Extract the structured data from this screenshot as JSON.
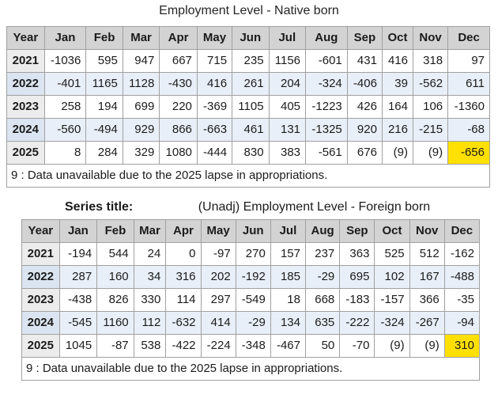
{
  "colors": {
    "header_bg": "#d3d3d3",
    "alt_row_bg": "#e9eff8",
    "year_cell_bg": "#ececec",
    "year_cell_alt_bg": "#dbe5f1",
    "highlight_yellow": "#ffe000",
    "table_border": "#a0a0a0"
  },
  "native_table": {
    "title": "Employment Level - Native born",
    "columns": [
      "Year",
      "Jan",
      "Feb",
      "Mar",
      "Apr",
      "May",
      "Jun",
      "Jul",
      "Aug",
      "Sep",
      "Oct",
      "Nov",
      "Dec"
    ],
    "rows": [
      {
        "year": "2021",
        "values": [
          "-1036",
          "595",
          "947",
          "667",
          "715",
          "235",
          "1156",
          "-601",
          "431",
          "416",
          "318",
          "97"
        ]
      },
      {
        "year": "2022",
        "values": [
          "-401",
          "1165",
          "1128",
          "-430",
          "416",
          "261",
          "204",
          "-324",
          "-406",
          "39",
          "-562",
          "611"
        ]
      },
      {
        "year": "2023",
        "values": [
          "258",
          "194",
          "699",
          "220",
          "-369",
          "1105",
          "405",
          "-1223",
          "426",
          "164",
          "106",
          "-1360"
        ]
      },
      {
        "year": "2024",
        "values": [
          "-560",
          "-494",
          "929",
          "866",
          "-663",
          "461",
          "131",
          "-1325",
          "920",
          "216",
          "-215",
          "-68"
        ]
      },
      {
        "year": "2025",
        "values": [
          "8",
          "284",
          "329",
          "1080",
          "-444",
          "830",
          "383",
          "-561",
          "676",
          "(9)",
          "(9)",
          "-656"
        ],
        "highlight_col": 11
      }
    ],
    "footnote": "9 : Data unavailable due to the 2025 lapse in appropriations."
  },
  "foreign_table": {
    "series_label": "Series title:",
    "title": "(Unadj) Employment Level - Foreign born",
    "columns": [
      "Year",
      "Jan",
      "Feb",
      "Mar",
      "Apr",
      "May",
      "Jun",
      "Jul",
      "Aug",
      "Sep",
      "Oct",
      "Nov",
      "Dec"
    ],
    "rows": [
      {
        "year": "2021",
        "values": [
          "-194",
          "544",
          "24",
          "0",
          "-97",
          "270",
          "157",
          "237",
          "363",
          "525",
          "512",
          "-162"
        ]
      },
      {
        "year": "2022",
        "values": [
          "287",
          "160",
          "34",
          "316",
          "202",
          "-192",
          "185",
          "-29",
          "695",
          "102",
          "167",
          "-488"
        ]
      },
      {
        "year": "2023",
        "values": [
          "-438",
          "826",
          "330",
          "114",
          "297",
          "-549",
          "18",
          "668",
          "-183",
          "-157",
          "366",
          "-35"
        ]
      },
      {
        "year": "2024",
        "values": [
          "-545",
          "1160",
          "112",
          "-632",
          "414",
          "-29",
          "134",
          "635",
          "-222",
          "-324",
          "-267",
          "-94"
        ]
      },
      {
        "year": "2025",
        "values": [
          "1045",
          "-87",
          "538",
          "-422",
          "-224",
          "-348",
          "-467",
          "50",
          "-70",
          "(9)",
          "(9)",
          "310"
        ],
        "highlight_col": 11
      }
    ],
    "footnote": "9 : Data unavailable due to the 2025 lapse in appropriations."
  }
}
